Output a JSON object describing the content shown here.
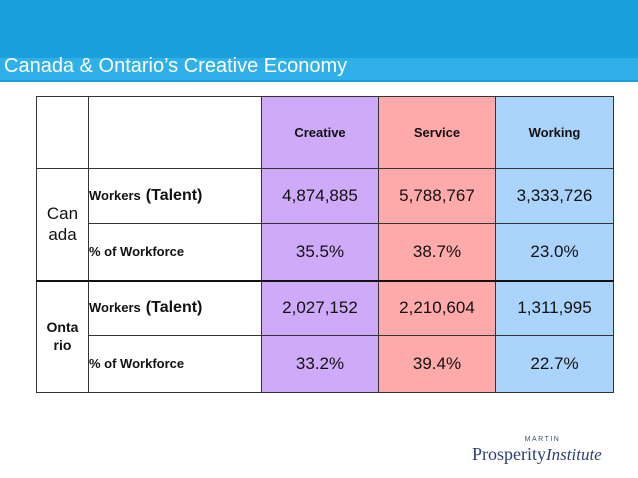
{
  "slide": {
    "title": "Canada & Ontario’s Creative Economy",
    "colors": {
      "header": "#1aa0dc",
      "creative": "#cfaaf8",
      "service": "#ffaaaa",
      "working": "#aad4fb"
    }
  },
  "table": {
    "columns": [
      "Creative",
      "Service",
      "Working"
    ],
    "groups": [
      {
        "region_lines": [
          "Can",
          "ada"
        ],
        "rows": [
          {
            "metric_small": "Workers",
            "metric_big": "(Talent)",
            "values": [
              "4,874,885",
              "5,788,767",
              "3,333,726"
            ]
          },
          {
            "metric_small": "% of Workforce",
            "metric_big": "",
            "values": [
              "35.5%",
              "38.7%",
              "23.0%"
            ]
          }
        ]
      },
      {
        "region_lines": [
          "Onta",
          "rio"
        ],
        "rows": [
          {
            "metric_small": "Workers",
            "metric_big": "(Talent)",
            "values": [
              "2,027,152",
              "2,210,604",
              "1,311,995"
            ]
          },
          {
            "metric_small": "% of Workforce",
            "metric_big": "",
            "values": [
              "33.2%",
              "39.4%",
              "22.7%"
            ]
          }
        ]
      }
    ]
  },
  "logo": {
    "top": "MARTIN",
    "main": "Prosperity",
    "sub": "Institute"
  }
}
